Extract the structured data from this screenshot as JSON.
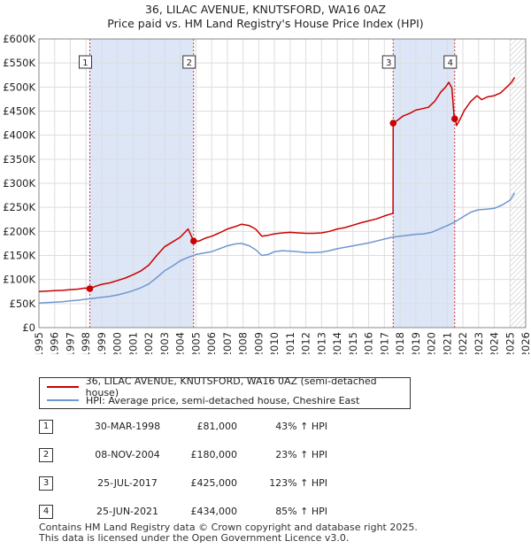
{
  "title": {
    "line1": "36, LILAC AVENUE, KNUTSFORD, WA16 0AZ",
    "line2": "Price paid vs. HM Land Registry's House Price Index (HPI)"
  },
  "colors": {
    "property": "#cc0000",
    "hpi": "#6f97d0",
    "shade": "#dde6f6",
    "marker_line": "#dd3333"
  },
  "chart_data": {
    "type": "line",
    "xlim": [
      1995,
      2026
    ],
    "ylim": [
      0,
      600000
    ],
    "y_ticks": [
      {
        "value": 0,
        "label": "£0"
      },
      {
        "value": 50000,
        "label": "£50K"
      },
      {
        "value": 100000,
        "label": "£100K"
      },
      {
        "value": 150000,
        "label": "£150K"
      },
      {
        "value": 200000,
        "label": "£200K"
      },
      {
        "value": 250000,
        "label": "£250K"
      },
      {
        "value": 300000,
        "label": "£300K"
      },
      {
        "value": 350000,
        "label": "£350K"
      },
      {
        "value": 400000,
        "label": "£400K"
      },
      {
        "value": 450000,
        "label": "£450K"
      },
      {
        "value": 500000,
        "label": "£500K"
      },
      {
        "value": 550000,
        "label": "£550K"
      },
      {
        "value": 600000,
        "label": "£600K"
      }
    ],
    "x_ticks": [
      "1995",
      "1996",
      "1997",
      "1998",
      "1999",
      "2000",
      "2001",
      "2002",
      "2003",
      "2004",
      "2005",
      "2006",
      "2007",
      "2008",
      "2009",
      "2010",
      "2011",
      "2012",
      "2013",
      "2014",
      "2015",
      "2016",
      "2017",
      "2018",
      "2019",
      "2020",
      "2021",
      "2022",
      "2023",
      "2024",
      "2025",
      "2026"
    ],
    "series": [
      {
        "name": "36, LILAC AVENUE, KNUTSFORD, WA16 0AZ (semi-detached house)",
        "color": "#cc0000",
        "x": [
          1995.0,
          1995.5,
          1996.0,
          1996.5,
          1997.0,
          1997.5,
          1997.9,
          1998.24,
          1998.6,
          1999.0,
          1999.5,
          2000.0,
          2000.5,
          2001.0,
          2001.5,
          2002.0,
          2002.5,
          2003.0,
          2003.5,
          2004.0,
          2004.5,
          2004.85,
          2005.2,
          2005.6,
          2006.0,
          2006.5,
          2007.0,
          2007.5,
          2007.9,
          2008.4,
          2008.8,
          2009.2,
          2009.6,
          2010.0,
          2010.5,
          2011.0,
          2011.5,
          2012.0,
          2012.5,
          2013.0,
          2013.5,
          2014.0,
          2014.5,
          2015.0,
          2015.5,
          2016.0,
          2016.5,
          2017.0,
          2017.5,
          2017.55,
          2017.56,
          2017.8,
          2018.2,
          2018.6,
          2019.0,
          2019.4,
          2019.8,
          2020.2,
          2020.6,
          2020.9,
          2021.1,
          2021.3,
          2021.45,
          2021.48,
          2021.6,
          2021.8,
          2022.1,
          2022.5,
          2022.9,
          2023.2,
          2023.6,
          2024.0,
          2024.4,
          2024.8,
          2025.1,
          2025.3
        ],
        "y": [
          75000,
          76000,
          77000,
          77500,
          79000,
          80000,
          82000,
          81000,
          86000,
          90000,
          93000,
          98000,
          103000,
          110000,
          118000,
          130000,
          150000,
          168000,
          178000,
          188000,
          205000,
          180000,
          180000,
          186000,
          190000,
          197000,
          205000,
          210000,
          215000,
          212000,
          205000,
          190000,
          192000,
          195000,
          197000,
          198000,
          197000,
          196000,
          196000,
          197000,
          200000,
          205000,
          208000,
          213000,
          218000,
          222000,
          226000,
          232000,
          237000,
          237000,
          425000,
          430000,
          440000,
          445000,
          452000,
          455000,
          458000,
          470000,
          490000,
          500000,
          510000,
          498000,
          434000,
          440000,
          420000,
          432000,
          452000,
          470000,
          482000,
          474000,
          480000,
          482000,
          488000,
          500000,
          510000,
          520000
        ]
      },
      {
        "name": "HPI: Average price, semi-detached house, Cheshire East",
        "color": "#6f97d0",
        "x": [
          1995.0,
          1995.5,
          1996.0,
          1996.5,
          1997.0,
          1997.5,
          1998.0,
          1998.5,
          1999.0,
          1999.5,
          2000.0,
          2000.5,
          2001.0,
          2001.5,
          2002.0,
          2002.5,
          2003.0,
          2003.5,
          2004.0,
          2004.5,
          2005.0,
          2005.5,
          2006.0,
          2006.5,
          2007.0,
          2007.5,
          2007.9,
          2008.4,
          2008.8,
          2009.2,
          2009.6,
          2010.0,
          2010.5,
          2011.0,
          2011.5,
          2012.0,
          2012.5,
          2013.0,
          2013.5,
          2014.0,
          2014.5,
          2015.0,
          2015.5,
          2016.0,
          2016.5,
          2017.0,
          2017.5,
          2018.0,
          2018.5,
          2019.0,
          2019.5,
          2020.0,
          2020.5,
          2021.0,
          2021.5,
          2022.0,
          2022.5,
          2023.0,
          2023.5,
          2024.0,
          2024.5,
          2025.0,
          2025.3
        ],
        "y": [
          51000,
          52000,
          53000,
          54000,
          55500,
          57000,
          59000,
          61000,
          63000,
          65000,
          68000,
          72000,
          77000,
          83000,
          91000,
          104000,
          118000,
          128000,
          139000,
          146000,
          152000,
          155000,
          158000,
          164000,
          170000,
          174000,
          175000,
          170000,
          162000,
          150000,
          152000,
          158000,
          160000,
          159000,
          158000,
          156000,
          156000,
          157000,
          160000,
          164000,
          167000,
          170000,
          173000,
          176000,
          180000,
          184000,
          188000,
          190000,
          192000,
          194000,
          195000,
          198000,
          205000,
          212000,
          220000,
          230000,
          240000,
          245000,
          246000,
          248000,
          255000,
          265000,
          280000
        ]
      }
    ],
    "sales": [
      {
        "num": "1",
        "date": "30-MAR-1998",
        "price": "£81,000",
        "hpi": "43% ↑ HPI",
        "x": 1998.24,
        "y": 81000
      },
      {
        "num": "2",
        "date": "08-NOV-2004",
        "price": "£180,000",
        "hpi": "23% ↑ HPI",
        "x": 2004.85,
        "y": 180000
      },
      {
        "num": "3",
        "date": "25-JUL-2017",
        "price": "£425,000",
        "hpi": "123% ↑ HPI",
        "x": 2017.56,
        "y": 425000
      },
      {
        "num": "4",
        "date": "25-JUN-2021",
        "price": "£434,000",
        "hpi": "85% ↑ HPI",
        "x": 2021.48,
        "y": 434000
      }
    ],
    "shaded_ranges": [
      [
        1998.24,
        2004.85
      ],
      [
        2017.56,
        2021.48
      ]
    ],
    "forecast_from": 2025.0,
    "grid": true
  },
  "legend": {
    "property": "36, LILAC AVENUE, KNUTSFORD, WA16 0AZ (semi-detached house)",
    "hpi": "HPI: Average price, semi-detached house, Cheshire East"
  },
  "footer": {
    "line1": "Contains HM Land Registry data © Crown copyright and database right 2025.",
    "line2": "This data is licensed under the Open Government Licence v3.0."
  }
}
